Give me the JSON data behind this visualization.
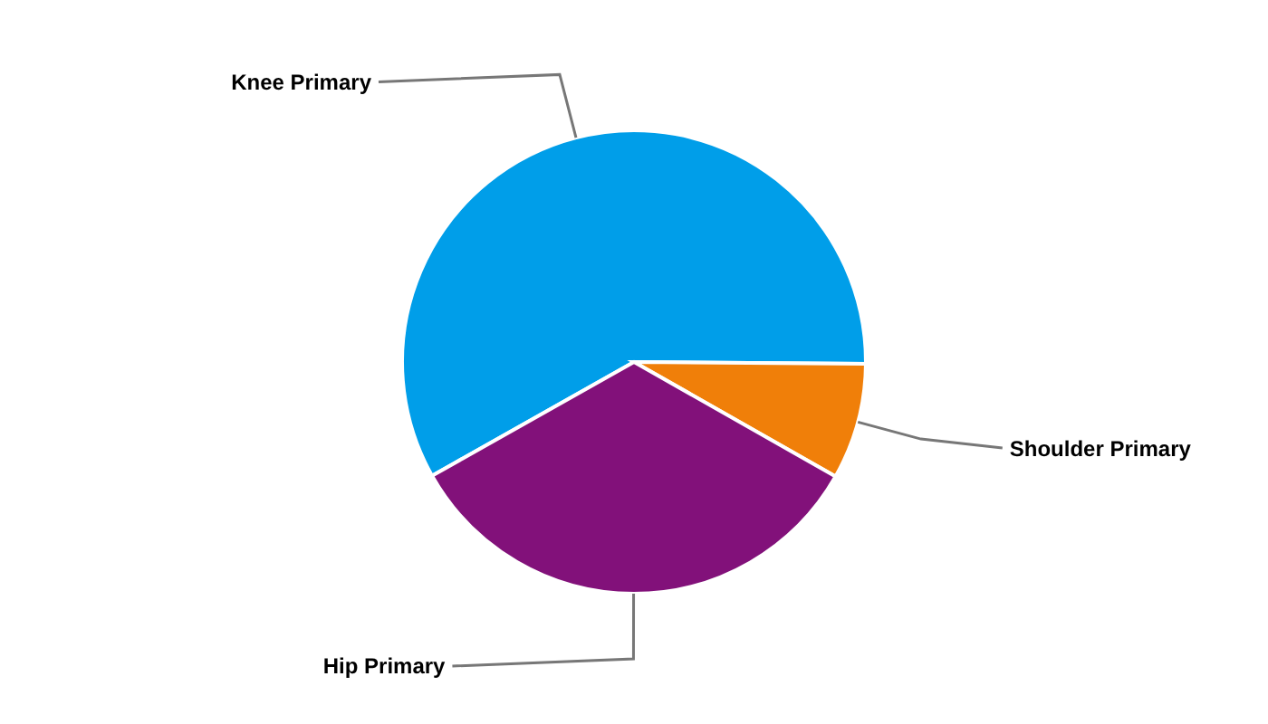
{
  "chart_data": {
    "type": "pie",
    "categories": [
      "Knee Primary",
      "Shoulder Primary",
      "Hip Primary"
    ],
    "values": [
      58.3,
      8.1,
      33.6
    ],
    "colors": [
      "#009ee9",
      "#f07f09",
      "#82117a"
    ]
  }
}
